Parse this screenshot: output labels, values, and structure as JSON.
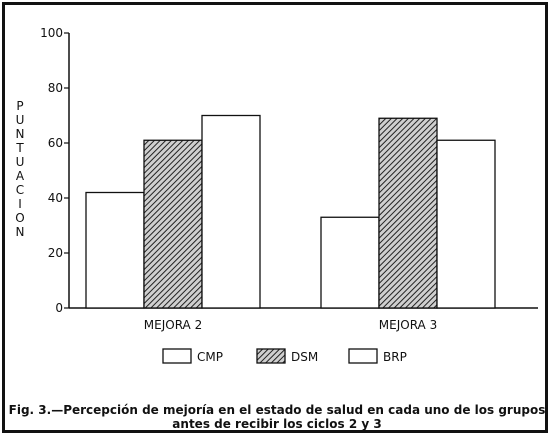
{
  "chart_data": {
    "type": "bar",
    "categories": [
      "MEJORA 2",
      "MEJORA 3"
    ],
    "series": [
      {
        "name": "CMP",
        "values": [
          42,
          33
        ],
        "fill": "#ffffff"
      },
      {
        "name": "DSM",
        "values": [
          61,
          69
        ],
        "fill": "hatch"
      },
      {
        "name": "BRP",
        "values": [
          70,
          61
        ],
        "fill": "#ffffff"
      }
    ],
    "ylabel": "PUNTUACION",
    "ylim": [
      0,
      100
    ],
    "yticks": [
      0,
      20,
      40,
      60,
      80,
      100
    ],
    "legend_position": "bottom"
  },
  "caption": {
    "line1": "Fig. 3.—Percepción de mejoría en el estado de salud en cada uno de los grupos",
    "line2": "antes de recibir los ciclos 2 y 3"
  }
}
